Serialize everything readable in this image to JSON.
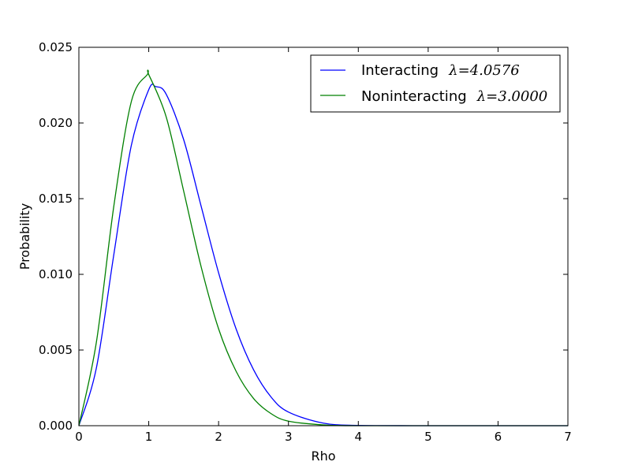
{
  "chart_data": {
    "type": "line",
    "title": "",
    "xlabel": "Rho",
    "ylabel": "Probability",
    "xlim": [
      0,
      7
    ],
    "ylim": [
      0,
      0.025
    ],
    "x_ticks": [
      0,
      1,
      2,
      3,
      4,
      5,
      6,
      7
    ],
    "x_tick_labels": [
      "0",
      "1",
      "2",
      "3",
      "4",
      "5",
      "6",
      "7"
    ],
    "y_ticks": [
      0,
      0.005,
      0.01,
      0.015,
      0.02,
      0.025
    ],
    "y_tick_labels": [
      "0.000",
      "0.005",
      "0.010",
      "0.015",
      "0.020",
      "0.025"
    ],
    "grid": false,
    "legend_position": "top-right",
    "series": [
      {
        "name": "Interacting",
        "lambda_label": "λ=4.0576",
        "color": "#0000ff",
        "x": [
          0,
          0.25,
          0.5,
          0.75,
          1.0,
          1.1,
          1.25,
          1.5,
          1.75,
          2.0,
          2.25,
          2.5,
          2.75,
          3.0,
          3.5,
          4.0,
          5.0,
          6.0,
          7.0
        ],
        "y": [
          0,
          0.0038,
          0.0113,
          0.0185,
          0.0222,
          0.0224,
          0.0219,
          0.0189,
          0.0145,
          0.0101,
          0.0064,
          0.0037,
          0.0019,
          0.0009,
          0.00017,
          2e-05,
          0,
          0,
          0
        ]
      },
      {
        "name": "Noninteracting",
        "lambda_label": "λ=3.0000",
        "color": "#008000",
        "x": [
          0,
          0.25,
          0.5,
          0.75,
          0.98,
          1.0,
          1.25,
          1.5,
          1.75,
          2.0,
          2.25,
          2.5,
          2.75,
          3.0,
          3.5,
          4.0,
          5.0,
          6.0,
          7.0
        ],
        "y": [
          0,
          0.0055,
          0.0145,
          0.0214,
          0.0232,
          0.0232,
          0.0204,
          0.0155,
          0.0105,
          0.0064,
          0.0036,
          0.0018,
          0.0008,
          0.0003,
          5e-05,
          0,
          0,
          0,
          0
        ]
      }
    ]
  }
}
